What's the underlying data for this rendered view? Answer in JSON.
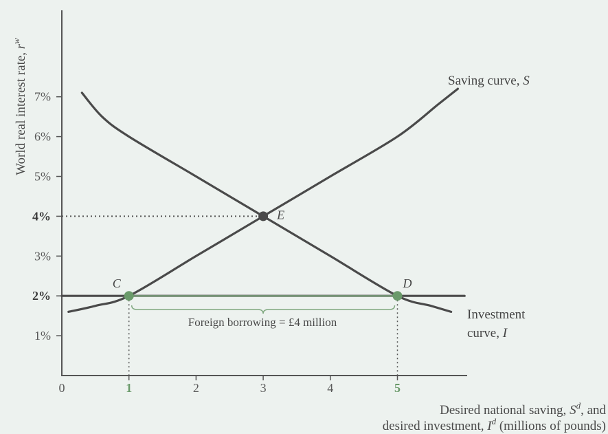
{
  "chart_data": {
    "type": "line",
    "xlabel_line1": "Desired national saving, ",
    "xlabel_line1_sym": "S",
    "xlabel_line1_sup": "d",
    "xlabel_line1_tail": ", and",
    "xlabel_line2": "desired investment, ",
    "xlabel_line2_sym": "I",
    "xlabel_line2_sup": "d",
    "xlabel_line2_tail": " (millions of pounds)",
    "ylabel": "World real interest rate, ",
    "ylabel_sym": "r",
    "ylabel_sup": "w",
    "xlim": [
      0,
      6
    ],
    "ylim": [
      0,
      9
    ],
    "x_ticks": [
      {
        "value": 0,
        "label": "0",
        "style": "normal"
      },
      {
        "value": 1,
        "label": "1",
        "style": "green"
      },
      {
        "value": 2,
        "label": "2",
        "style": "normal"
      },
      {
        "value": 3,
        "label": "3",
        "style": "normal"
      },
      {
        "value": 4,
        "label": "4",
        "style": "normal"
      },
      {
        "value": 5,
        "label": "5",
        "style": "green"
      }
    ],
    "y_ticks": [
      {
        "value": 1,
        "label": "1%",
        "style": "normal"
      },
      {
        "value": 2,
        "label": "2%",
        "style": "hl"
      },
      {
        "value": 3,
        "label": "3%",
        "style": "normal"
      },
      {
        "value": 4,
        "label": "4%",
        "style": "hl"
      },
      {
        "value": 5,
        "label": "5%",
        "style": "normal"
      },
      {
        "value": 6,
        "label": "6%",
        "style": "normal"
      },
      {
        "value": 7,
        "label": "7%",
        "style": "normal"
      }
    ],
    "series": [
      {
        "name": "Saving curve, S",
        "label_lines": [
          "Saving curve, S"
        ],
        "color": "#4a4a4a",
        "points": [
          [
            0.1,
            1.6
          ],
          [
            0.5,
            1.75
          ],
          [
            1,
            2
          ],
          [
            2,
            3
          ],
          [
            3,
            4
          ],
          [
            4,
            5
          ],
          [
            5,
            6
          ],
          [
            5.6,
            6.8
          ],
          [
            5.9,
            7.2
          ]
        ]
      },
      {
        "name": "Investment curve, I",
        "label_lines": [
          "Investment",
          "curve, I"
        ],
        "color": "#4a4a4a",
        "points": [
          [
            0.3,
            7.1
          ],
          [
            0.6,
            6.5
          ],
          [
            1,
            6
          ],
          [
            2,
            5
          ],
          [
            3,
            4
          ],
          [
            4,
            3
          ],
          [
            5,
            2
          ],
          [
            5.5,
            1.75
          ],
          [
            5.8,
            1.6
          ]
        ]
      },
      {
        "name": "World real interest rate",
        "color": "#4a4a4a",
        "points": [
          [
            0,
            2
          ],
          [
            6,
            2
          ]
        ]
      }
    ],
    "points": [
      {
        "label": "E",
        "x": 3,
        "y": 4,
        "color": "#4a4a4a"
      },
      {
        "label": "C",
        "x": 1,
        "y": 2,
        "color": "#6a9a6a"
      },
      {
        "label": "D",
        "x": 5,
        "y": 2,
        "color": "#6a9a6a"
      }
    ],
    "annotation": "Foreign borrowing = £4 million",
    "grid": false
  }
}
